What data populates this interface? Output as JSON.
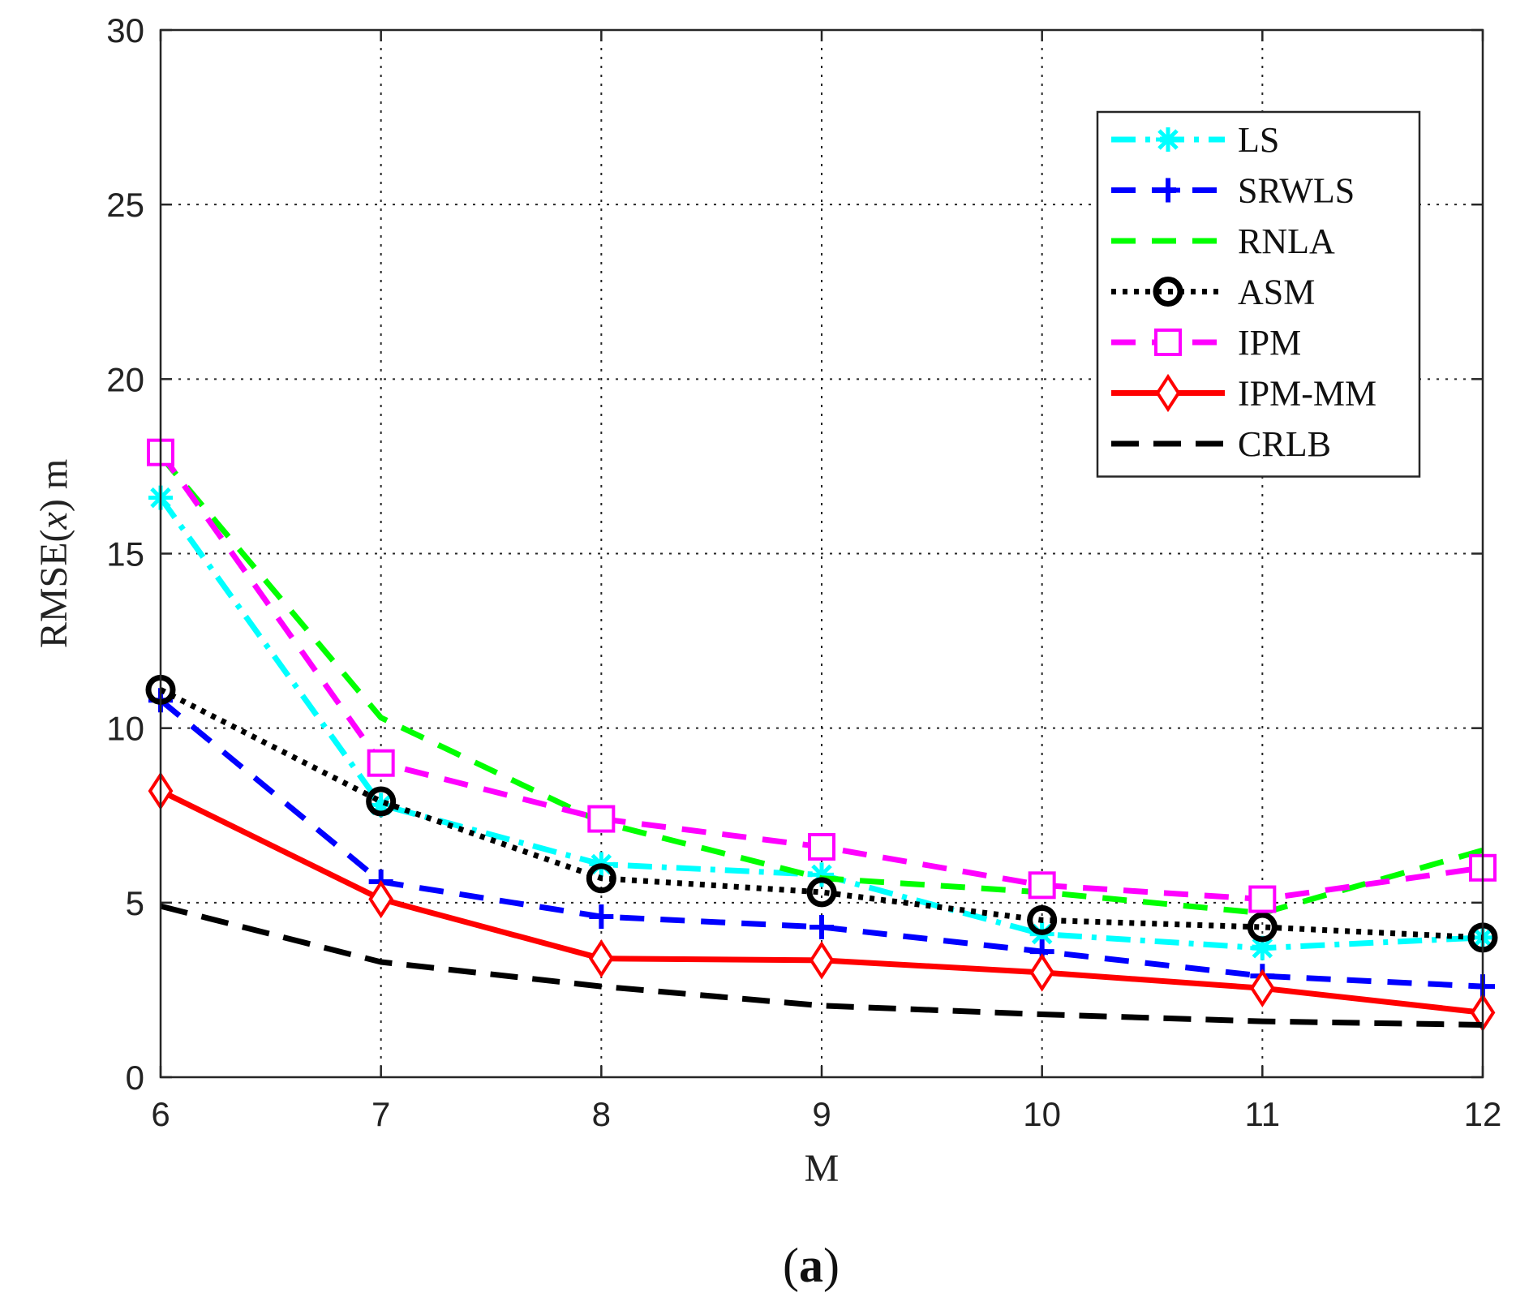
{
  "chart_data": {
    "type": "line",
    "title": "",
    "xlabel": "M",
    "ylabel_prefix": "RMSE(",
    "ylabel_var": "x",
    "ylabel_suffix": ") m",
    "caption_open": "(",
    "caption_letter": "a",
    "caption_close": ")",
    "x": [
      6,
      7,
      8,
      9,
      10,
      11,
      12
    ],
    "xlim": [
      6,
      12
    ],
    "ylim": [
      0,
      30
    ],
    "xticks": [
      6,
      7,
      8,
      9,
      10,
      11,
      12
    ],
    "yticks": [
      0,
      5,
      10,
      15,
      20,
      25,
      30
    ],
    "grid": true,
    "legend_position": "top-right",
    "series": [
      {
        "name": "LS",
        "color": "#00ffff",
        "dash": "dashdot",
        "marker": "star",
        "values": [
          16.6,
          7.8,
          6.1,
          5.8,
          4.1,
          3.7,
          4.0
        ]
      },
      {
        "name": "SRWLS",
        "color": "#0000ff",
        "dash": "dash",
        "marker": "plus",
        "values": [
          10.8,
          5.6,
          4.6,
          4.3,
          3.6,
          2.9,
          2.6
        ]
      },
      {
        "name": "RNLA",
        "color": "#00ff00",
        "dash": "dash",
        "marker": "none",
        "values": [
          17.8,
          10.3,
          7.3,
          5.7,
          5.3,
          4.7,
          6.5
        ]
      },
      {
        "name": "ASM",
        "color": "#000000",
        "dash": "dot",
        "marker": "circle",
        "values": [
          11.1,
          7.9,
          5.7,
          5.3,
          4.5,
          4.3,
          4.0
        ]
      },
      {
        "name": "IPM",
        "color": "#ff00ff",
        "dash": "dash",
        "marker": "square",
        "values": [
          17.9,
          9.0,
          7.4,
          6.6,
          5.5,
          5.1,
          6.0
        ]
      },
      {
        "name": "IPM-MM",
        "color": "#ff0000",
        "dash": "solid",
        "marker": "diamond",
        "values": [
          8.2,
          5.1,
          3.4,
          3.35,
          3.0,
          2.55,
          1.85
        ]
      },
      {
        "name": "CRLB",
        "color": "#000000",
        "dash": "longdash",
        "marker": "none",
        "values": [
          4.9,
          3.3,
          2.6,
          2.05,
          1.8,
          1.6,
          1.5
        ]
      }
    ]
  }
}
